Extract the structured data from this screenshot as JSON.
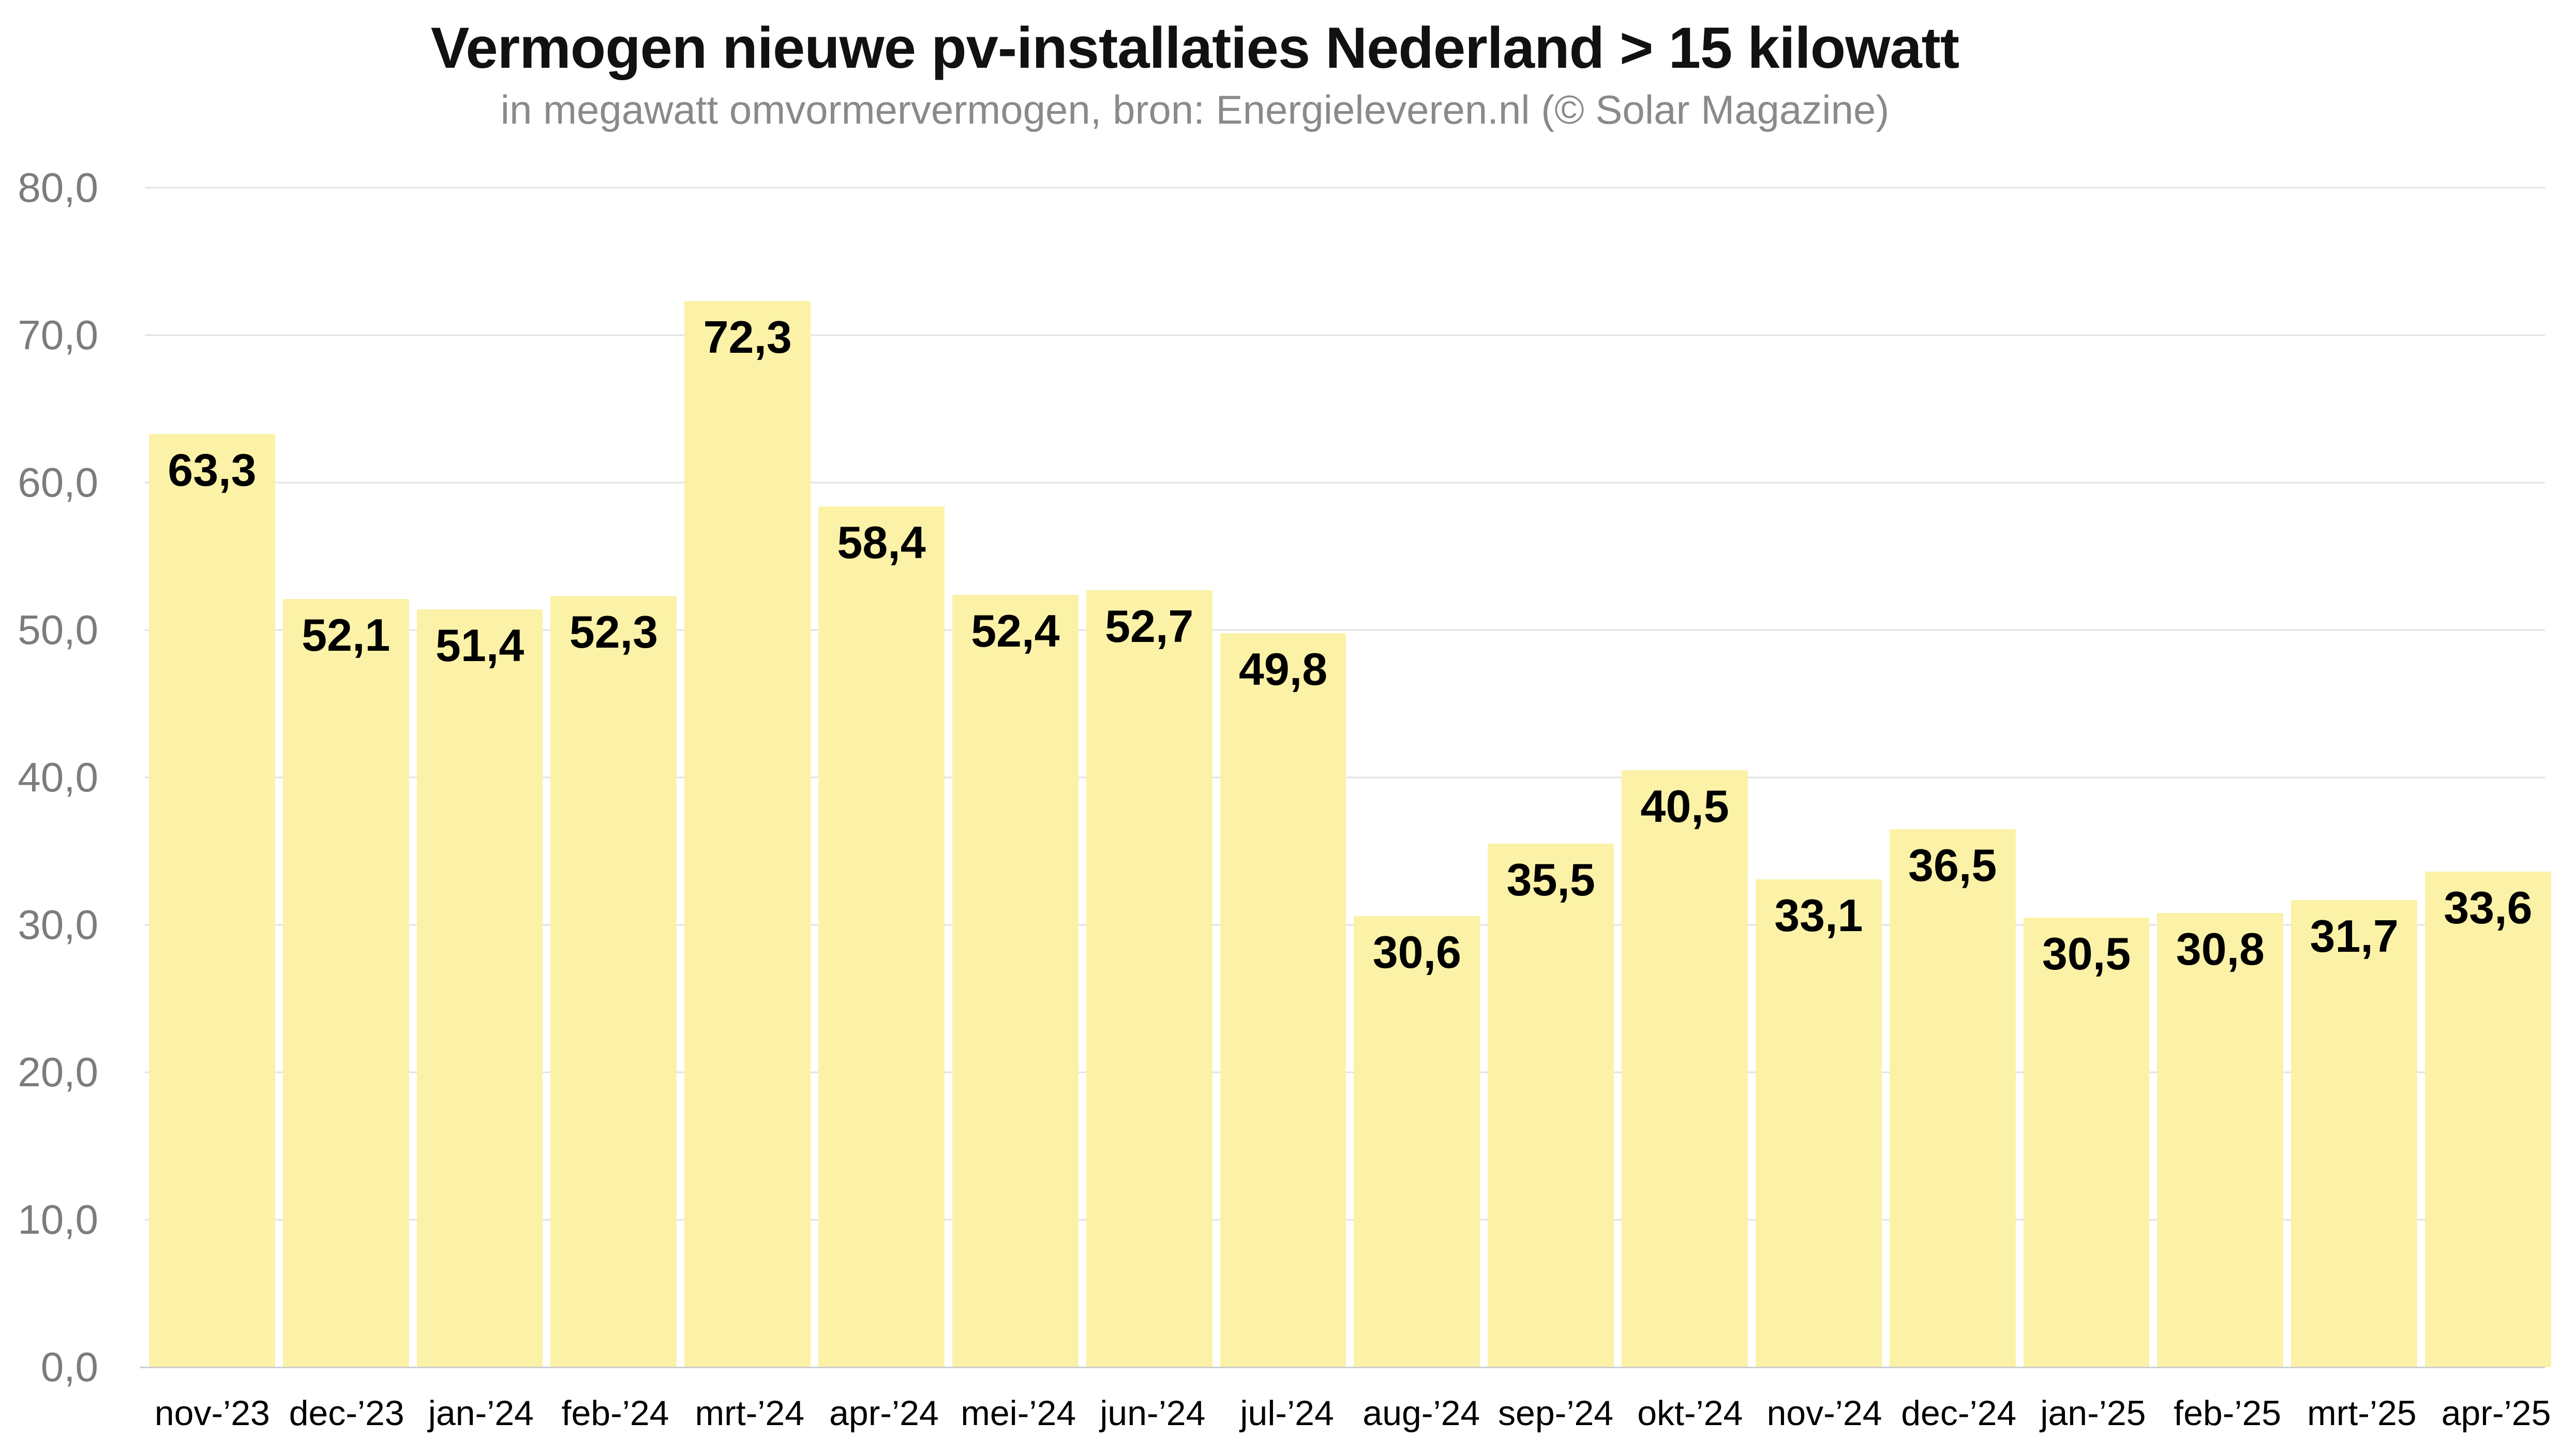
{
  "header": {
    "title": "Vermogen nieuwe pv-installaties Nederland > 15 kilowatt",
    "subtitle": "in megawatt omvormervermogen, bron: Energieleveren.nl (© Solar Magazine)"
  },
  "colors": {
    "background": "#ffffff",
    "bar_fill": "#fbf2a7",
    "gridline": "#e2e2e2",
    "baseline": "#cfcfcf",
    "y_axis_label": "#7c7c7c",
    "x_axis_label": "#000000",
    "value_label": "#000000",
    "title": "#111111",
    "subtitle": "#8a8a8a"
  },
  "chart_data": {
    "type": "bar",
    "title": "Vermogen nieuwe pv-installaties Nederland > 15 kilowatt",
    "subtitle": "in megawatt omvormervermogen, bron: Energieleveren.nl (© Solar Magazine)",
    "xlabel": "",
    "ylabel": "",
    "categories": [
      "nov-’23",
      "dec-’23",
      "jan-’24",
      "feb-’24",
      "mrt-’24",
      "apr-’24",
      "mei-’24",
      "jun-’24",
      "jul-’24",
      "aug-’24",
      "sep-’24",
      "okt-’24",
      "nov-’24",
      "dec-’24",
      "jan-’25",
      "feb-’25",
      "mrt-’25",
      "apr-’25"
    ],
    "values": [
      63.3,
      52.1,
      51.4,
      52.3,
      72.3,
      58.4,
      52.4,
      52.7,
      49.8,
      30.6,
      35.5,
      40.5,
      33.1,
      36.5,
      30.5,
      30.8,
      31.7,
      33.6
    ],
    "value_labels": [
      "63,3",
      "52,1",
      "51,4",
      "52,3",
      "72,3",
      "58,4",
      "52,4",
      "52,7",
      "49,8",
      "30,6",
      "35,5",
      "40,5",
      "33,1",
      "36,5",
      "30,5",
      "30,8",
      "31,7",
      "33,6"
    ],
    "ylim": [
      0,
      80
    ],
    "ytick_values": [
      0,
      10,
      20,
      30,
      40,
      50,
      60,
      70,
      80
    ],
    "ytick_labels": [
      "0,0",
      "10,0",
      "20,0",
      "30,0",
      "40,0",
      "50,0",
      "60,0",
      "70,0",
      "80,0"
    ],
    "grid": "horizontal",
    "legend": "none",
    "value_labels_position": "inside-top"
  }
}
